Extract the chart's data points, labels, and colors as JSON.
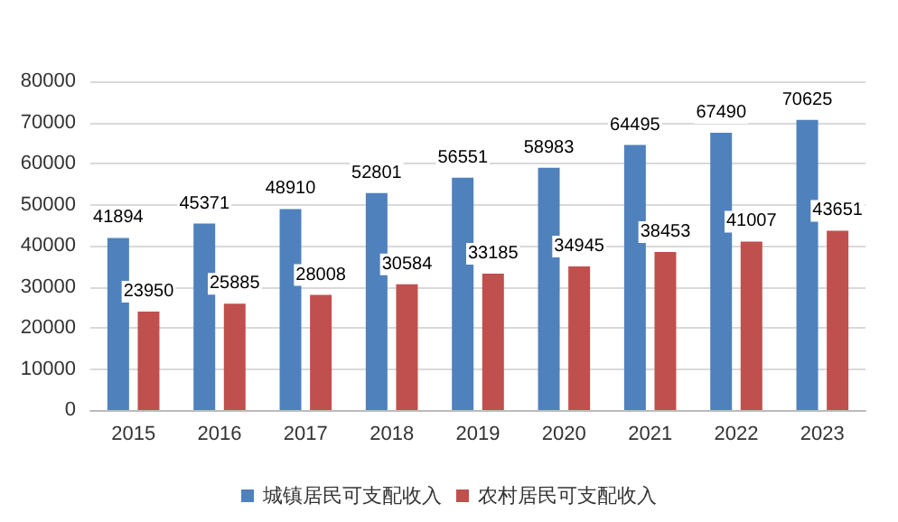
{
  "chart_data": {
    "type": "bar",
    "categories": [
      "2015",
      "2016",
      "2017",
      "2018",
      "2019",
      "2020",
      "2021",
      "2022",
      "2023"
    ],
    "series": [
      {
        "name": "城镇居民可支配收入",
        "color": "#4f81bd",
        "values": [
          41894,
          45371,
          48910,
          52801,
          56551,
          58983,
          64495,
          67490,
          70625
        ]
      },
      {
        "name": "农村居民可支配收入",
        "color": "#c0504d",
        "values": [
          23950,
          25885,
          28008,
          30584,
          33185,
          34945,
          38453,
          41007,
          43651
        ]
      }
    ],
    "ylim": [
      0,
      80000
    ],
    "yticks": [
      0,
      10000,
      20000,
      30000,
      40000,
      50000,
      60000,
      70000,
      80000
    ],
    "grid": "y",
    "legend": "bottom",
    "data_labels": true
  }
}
